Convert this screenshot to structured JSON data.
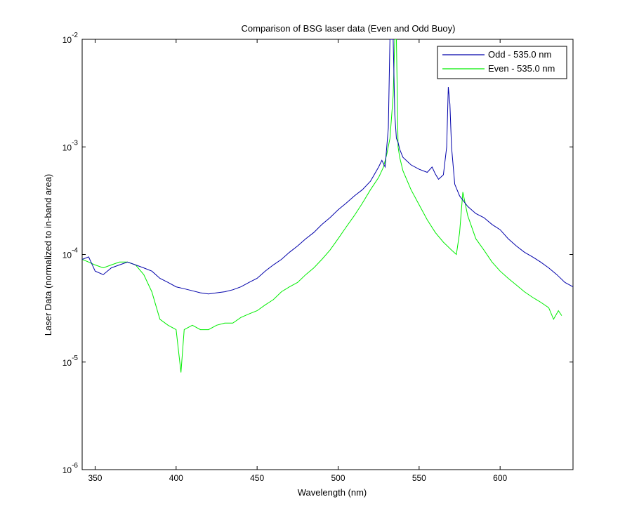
{
  "chart_data": {
    "type": "line",
    "title": "Comparison of BSG laser data (Even and Odd Buoy)",
    "xlabel": "Wavelength (nm)",
    "ylabel": "Laser Data (normalized to in-band area)",
    "xlim": [
      342,
      645
    ],
    "ylim": [
      1e-06,
      0.01
    ],
    "yscale": "log",
    "grid": false,
    "legend_position": "top-right",
    "xticks": [
      {
        "value": 350,
        "label": "350"
      },
      {
        "value": 400,
        "label": "400"
      },
      {
        "value": 450,
        "label": "450"
      },
      {
        "value": 500,
        "label": "500"
      },
      {
        "value": 550,
        "label": "550"
      },
      {
        "value": 600,
        "label": "600"
      }
    ],
    "yticks": [
      {
        "value": 1e-06,
        "base": "10",
        "exp": "-6"
      },
      {
        "value": 1e-05,
        "base": "10",
        "exp": "-5"
      },
      {
        "value": 0.0001,
        "base": "10",
        "exp": "-4"
      },
      {
        "value": 0.001,
        "base": "10",
        "exp": "-3"
      },
      {
        "value": 0.01,
        "base": "10",
        "exp": "-2"
      }
    ],
    "series": [
      {
        "name": "Odd - 535.0 nm",
        "color": "#0000aa",
        "x": [
          342,
          346,
          350,
          355,
          360,
          365,
          370,
          375,
          380,
          385,
          390,
          395,
          400,
          405,
          410,
          415,
          420,
          425,
          430,
          435,
          440,
          445,
          450,
          455,
          460,
          465,
          470,
          475,
          480,
          485,
          490,
          495,
          500,
          505,
          510,
          515,
          520,
          525,
          527,
          529,
          531,
          532,
          533,
          534,
          535,
          536,
          537,
          538,
          540,
          545,
          550,
          555,
          558,
          560,
          562,
          565,
          567,
          568,
          569,
          570,
          572,
          575,
          580,
          585,
          590,
          595,
          600,
          605,
          610,
          615,
          620,
          625,
          630,
          635,
          640,
          645
        ],
        "y": [
          9e-05,
          9.5e-05,
          7e-05,
          6.5e-05,
          7.5e-05,
          8e-05,
          8.5e-05,
          8e-05,
          7.5e-05,
          7e-05,
          6e-05,
          5.5e-05,
          5e-05,
          4.8e-05,
          4.6e-05,
          4.4e-05,
          4.3e-05,
          4.4e-05,
          4.5e-05,
          4.7e-05,
          5e-05,
          5.5e-05,
          6e-05,
          7e-05,
          8e-05,
          9e-05,
          0.000105,
          0.00012,
          0.00014,
          0.00016,
          0.00019,
          0.00022,
          0.00026,
          0.0003,
          0.00035,
          0.0004,
          0.00048,
          0.00065,
          0.00075,
          0.00065,
          0.0015,
          0.01,
          0.01,
          0.01,
          0.002,
          0.0012,
          0.0011,
          0.00095,
          0.0008,
          0.00068,
          0.00062,
          0.00058,
          0.00065,
          0.00056,
          0.0005,
          0.00055,
          0.001,
          0.0036,
          0.0025,
          0.001,
          0.00045,
          0.00035,
          0.00028,
          0.00024,
          0.00022,
          0.00019,
          0.00017,
          0.00014,
          0.00012,
          0.000105,
          9.5e-05,
          8.5e-05,
          7.5e-05,
          6.5e-05,
          5.5e-05,
          5e-05
        ]
      },
      {
        "name": "Even - 535.0 nm",
        "color": "#00ee00",
        "x": [
          342,
          346,
          350,
          355,
          360,
          365,
          370,
          375,
          380,
          385,
          390,
          395,
          400,
          403,
          405,
          410,
          415,
          420,
          425,
          430,
          435,
          440,
          445,
          450,
          455,
          460,
          465,
          470,
          475,
          480,
          485,
          490,
          495,
          500,
          505,
          510,
          515,
          520,
          525,
          528,
          530,
          532,
          534,
          535,
          536,
          537,
          538,
          540,
          545,
          550,
          555,
          560,
          565,
          570,
          573,
          575,
          577,
          580,
          585,
          590,
          595,
          600,
          605,
          610,
          615,
          620,
          625,
          630,
          633,
          636,
          638
        ],
        "y": [
          9e-05,
          8.5e-05,
          8e-05,
          7.5e-05,
          8e-05,
          8.5e-05,
          8.5e-05,
          8e-05,
          6.5e-05,
          4.5e-05,
          2.5e-05,
          2.2e-05,
          2e-05,
          8e-06,
          2e-05,
          2.2e-05,
          2e-05,
          2e-05,
          2.2e-05,
          2.3e-05,
          2.3e-05,
          2.6e-05,
          2.8e-05,
          3e-05,
          3.4e-05,
          3.8e-05,
          4.5e-05,
          5e-05,
          5.5e-05,
          6.5e-05,
          7.5e-05,
          9e-05,
          0.00011,
          0.00014,
          0.00018,
          0.00023,
          0.0003,
          0.0004,
          0.00052,
          0.00065,
          0.00085,
          0.0012,
          0.003,
          0.01,
          0.01,
          0.001,
          0.0008,
          0.0006,
          0.0004,
          0.00029,
          0.00021,
          0.00016,
          0.00013,
          0.00011,
          0.0001,
          0.00016,
          0.00038,
          0.00023,
          0.00014,
          0.00011,
          8.5e-05,
          7e-05,
          6e-05,
          5.2e-05,
          4.5e-05,
          4e-05,
          3.6e-05,
          3.2e-05,
          2.5e-05,
          3e-05,
          2.7e-05
        ]
      }
    ]
  }
}
